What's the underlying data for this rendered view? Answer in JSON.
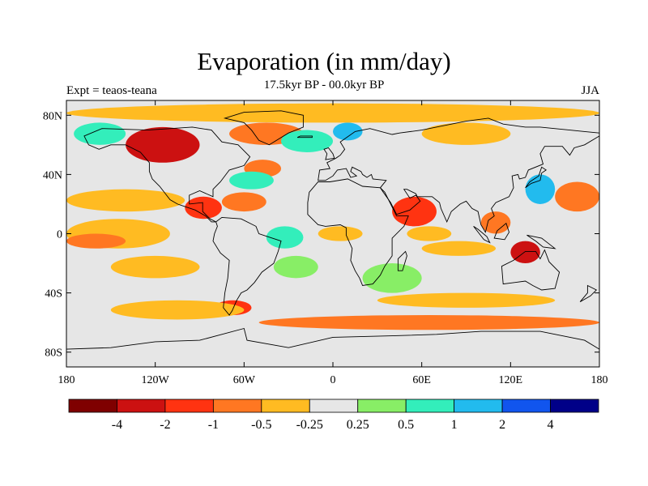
{
  "title": "Evaporation (in mm/day)",
  "subtitle": "17.5kyr BP - 00.0kyr BP",
  "left_label": "Expt = teaos-teana",
  "right_label": "JJA",
  "map": {
    "projection": "cylindrical-equidistant",
    "lon_range": [
      -180,
      180
    ],
    "lat_range": [
      -90,
      90
    ],
    "lat_ticks": [
      {
        "value": 80,
        "label": "80N"
      },
      {
        "value": 40,
        "label": "40N"
      },
      {
        "value": 0,
        "label": "0"
      },
      {
        "value": -40,
        "label": "40S"
      },
      {
        "value": -80,
        "label": "80S"
      }
    ],
    "lon_ticks": [
      {
        "value": -180,
        "label": "180"
      },
      {
        "value": -120,
        "label": "120W"
      },
      {
        "value": -60,
        "label": "60W"
      },
      {
        "value": 0,
        "label": "0"
      },
      {
        "value": 60,
        "label": "60E"
      },
      {
        "value": 120,
        "label": "120E"
      },
      {
        "value": 180,
        "label": "180"
      }
    ],
    "background_color": "#e6e6e6"
  },
  "colorbar": {
    "colors": [
      "#7f0000",
      "#cc1111",
      "#ff3311",
      "#ff7722",
      "#ffbb22",
      "#e6e6e6",
      "#88ee66",
      "#33eebb",
      "#22bbee",
      "#1155ee",
      "#000088"
    ],
    "labels": [
      "-4",
      "-2",
      "-1",
      "-0.5",
      "-0.25",
      "0.25",
      "0.5",
      "1",
      "2",
      "4"
    ]
  },
  "anomaly_regions": [
    {
      "lon": [
        -140,
        -90
      ],
      "lat": [
        48,
        72
      ],
      "level": 1
    },
    {
      "lon": [
        -70,
        -20
      ],
      "lat": [
        60,
        75
      ],
      "level": 3
    },
    {
      "lon": [
        -60,
        -35
      ],
      "lat": [
        38,
        50
      ],
      "level": 3
    },
    {
      "lon": [
        -35,
        0
      ],
      "lat": [
        55,
        70
      ],
      "level": 7
    },
    {
      "lon": [
        0,
        20
      ],
      "lat": [
        63,
        75
      ],
      "level": 8
    },
    {
      "lon": [
        -175,
        -140
      ],
      "lat": [
        60,
        75
      ],
      "level": 7
    },
    {
      "lon": [
        -70,
        -40
      ],
      "lat": [
        30,
        42
      ],
      "level": 7
    },
    {
      "lon": [
        -75,
        -45
      ],
      "lat": [
        15,
        28
      ],
      "level": 3
    },
    {
      "lon": [
        -100,
        -75
      ],
      "lat": [
        10,
        25
      ],
      "level": 2
    },
    {
      "lon": [
        -180,
        -100
      ],
      "lat": [
        15,
        30
      ],
      "level": 4
    },
    {
      "lon": [
        -180,
        -110
      ],
      "lat": [
        -10,
        10
      ],
      "level": 4
    },
    {
      "lon": [
        -150,
        -90
      ],
      "lat": [
        -30,
        -15
      ],
      "level": 4
    },
    {
      "lon": [
        -45,
        -20
      ],
      "lat": [
        -10,
        5
      ],
      "level": 7
    },
    {
      "lon": [
        -40,
        -10
      ],
      "lat": [
        -30,
        -15
      ],
      "level": 6
    },
    {
      "lon": [
        -10,
        20
      ],
      "lat": [
        -5,
        5
      ],
      "level": 4
    },
    {
      "lon": [
        40,
        70
      ],
      "lat": [
        5,
        25
      ],
      "level": 2
    },
    {
      "lon": [
        50,
        80
      ],
      "lat": [
        -5,
        5
      ],
      "level": 4
    },
    {
      "lon": [
        60,
        110
      ],
      "lat": [
        -15,
        -5
      ],
      "level": 4
    },
    {
      "lon": [
        100,
        120
      ],
      "lat": [
        0,
        15
      ],
      "level": 3
    },
    {
      "lon": [
        120,
        140
      ],
      "lat": [
        -20,
        -5
      ],
      "level": 1
    },
    {
      "lon": [
        130,
        150
      ],
      "lat": [
        20,
        40
      ],
      "level": 8
    },
    {
      "lon": [
        150,
        180
      ],
      "lat": [
        15,
        35
      ],
      "level": 3
    },
    {
      "lon": [
        -180,
        -140
      ],
      "lat": [
        -10,
        0
      ],
      "level": 3
    },
    {
      "lon": [
        20,
        60
      ],
      "lat": [
        -40,
        -20
      ],
      "level": 6
    },
    {
      "lon": [
        -80,
        -55
      ],
      "lat": [
        -55,
        -45
      ],
      "level": 2
    },
    {
      "lon": [
        -150,
        -60
      ],
      "lat": [
        -58,
        -45
      ],
      "level": 4
    },
    {
      "lon": [
        -50,
        180
      ],
      "lat": [
        -65,
        -55
      ],
      "level": 3
    },
    {
      "lon": [
        30,
        150
      ],
      "lat": [
        -50,
        -40
      ],
      "level": 4
    },
    {
      "lon": [
        60,
        120
      ],
      "lat": [
        60,
        75
      ],
      "level": 4
    },
    {
      "lon": [
        -180,
        180
      ],
      "lat": [
        75,
        88
      ],
      "level": 4
    }
  ]
}
